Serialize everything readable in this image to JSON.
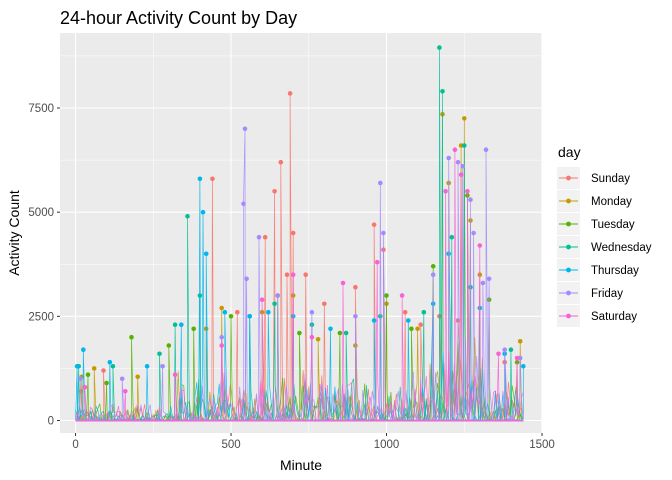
{
  "chart_data": {
    "type": "line",
    "title": "24-hour Activity Count by Day",
    "xlabel": "Minute",
    "ylabel": "Activity Count",
    "xlim": [
      -50,
      1500
    ],
    "ylim": [
      -300,
      9300
    ],
    "x_ticks": [
      0,
      500,
      1000,
      1500
    ],
    "y_ticks": [
      0,
      2500,
      5000,
      7500
    ],
    "x_tick_labels": [
      "0",
      "500",
      "1000",
      "1500"
    ],
    "y_tick_labels": [
      "0",
      "2500",
      "5000",
      "7500"
    ],
    "grid": true,
    "legend": {
      "title": "day",
      "placement": "right"
    },
    "series": [
      {
        "name": "Sunday",
        "color": "#F8766D",
        "peaks": [
          [
            18,
            700
          ],
          [
            90,
            1200
          ],
          [
            440,
            5800
          ],
          [
            520,
            2600
          ],
          [
            610,
            4400
          ],
          [
            640,
            5500
          ],
          [
            660,
            6200
          ],
          [
            680,
            3500
          ],
          [
            690,
            7850
          ],
          [
            700,
            4500
          ],
          [
            740,
            3500
          ],
          [
            800,
            2800
          ],
          [
            900,
            3200
          ],
          [
            960,
            4700
          ],
          [
            990,
            4100
          ],
          [
            1060,
            2600
          ],
          [
            1110,
            2300
          ],
          [
            1170,
            2500
          ],
          [
            1230,
            2400
          ],
          [
            1380,
            1400
          ]
        ]
      },
      {
        "name": "Monday",
        "color": "#C49A00",
        "peaks": [
          [
            20,
            1050
          ],
          [
            60,
            1250
          ],
          [
            200,
            1050
          ],
          [
            420,
            2200
          ],
          [
            470,
            2700
          ],
          [
            600,
            2600
          ],
          [
            700,
            3000
          ],
          [
            780,
            1950
          ],
          [
            900,
            1800
          ],
          [
            1000,
            2800
          ],
          [
            1100,
            2200
          ],
          [
            1180,
            7350
          ],
          [
            1200,
            5700
          ],
          [
            1240,
            6600
          ],
          [
            1250,
            7250
          ],
          [
            1270,
            4800
          ],
          [
            1300,
            3500
          ],
          [
            1430,
            1900
          ]
        ]
      },
      {
        "name": "Tuesday",
        "color": "#53B400",
        "peaks": [
          [
            40,
            1100
          ],
          [
            100,
            900
          ],
          [
            180,
            2000
          ],
          [
            300,
            1800
          ],
          [
            380,
            2200
          ],
          [
            500,
            2500
          ],
          [
            650,
            3000
          ],
          [
            720,
            2100
          ],
          [
            850,
            2100
          ],
          [
            1000,
            3000
          ],
          [
            1080,
            2200
          ],
          [
            1150,
            3700
          ],
          [
            1260,
            5400
          ],
          [
            1330,
            2900
          ],
          [
            1420,
            1400
          ]
        ]
      },
      {
        "name": "Wednesday",
        "color": "#00C094",
        "peaks": [
          [
            10,
            1300
          ],
          [
            120,
            1300
          ],
          [
            270,
            1600
          ],
          [
            320,
            2300
          ],
          [
            360,
            4900
          ],
          [
            400,
            3000
          ],
          [
            560,
            2500
          ],
          [
            640,
            2800
          ],
          [
            760,
            2300
          ],
          [
            870,
            2100
          ],
          [
            980,
            2500
          ],
          [
            1120,
            2600
          ],
          [
            1170,
            8950
          ],
          [
            1180,
            7900
          ],
          [
            1210,
            4400
          ],
          [
            1250,
            6600
          ],
          [
            1270,
            3200
          ],
          [
            1400,
            1700
          ]
        ]
      },
      {
        "name": "Thursday",
        "color": "#00B6EB",
        "peaks": [
          [
            5,
            1300
          ],
          [
            25,
            1700
          ],
          [
            110,
            1400
          ],
          [
            230,
            1300
          ],
          [
            340,
            2300
          ],
          [
            400,
            5800
          ],
          [
            410,
            5000
          ],
          [
            420,
            4000
          ],
          [
            480,
            2600
          ],
          [
            560,
            2500
          ],
          [
            620,
            2600
          ],
          [
            700,
            2500
          ],
          [
            820,
            2200
          ],
          [
            960,
            2400
          ],
          [
            1070,
            2400
          ],
          [
            1150,
            2800
          ],
          [
            1200,
            4000
          ],
          [
            1300,
            2700
          ],
          [
            1380,
            1600
          ],
          [
            1440,
            1300
          ]
        ]
      },
      {
        "name": "Friday",
        "color": "#A58AFF",
        "peaks": [
          [
            15,
            1000
          ],
          [
            150,
            1000
          ],
          [
            280,
            1300
          ],
          [
            470,
            2000
          ],
          [
            540,
            5200
          ],
          [
            545,
            7000
          ],
          [
            550,
            3400
          ],
          [
            590,
            4400
          ],
          [
            650,
            3000
          ],
          [
            760,
            2600
          ],
          [
            900,
            2500
          ],
          [
            980,
            5700
          ],
          [
            990,
            4500
          ],
          [
            1150,
            3500
          ],
          [
            1200,
            6300
          ],
          [
            1230,
            6200
          ],
          [
            1245,
            6100
          ],
          [
            1270,
            5300
          ],
          [
            1280,
            4500
          ],
          [
            1310,
            3300
          ],
          [
            1320,
            6500
          ],
          [
            1330,
            3400
          ],
          [
            1380,
            1700
          ],
          [
            1430,
            1500
          ]
        ]
      },
      {
        "name": "Saturday",
        "color": "#FB61D7",
        "peaks": [
          [
            30,
            800
          ],
          [
            160,
            700
          ],
          [
            320,
            1100
          ],
          [
            470,
            1800
          ],
          [
            600,
            2900
          ],
          [
            700,
            3500
          ],
          [
            760,
            2000
          ],
          [
            860,
            3300
          ],
          [
            970,
            3800
          ],
          [
            1050,
            3000
          ],
          [
            1190,
            5500
          ],
          [
            1220,
            6500
          ],
          [
            1240,
            5900
          ],
          [
            1260,
            5500
          ],
          [
            1300,
            4200
          ],
          [
            1360,
            1600
          ],
          [
            1420,
            1500
          ]
        ]
      }
    ]
  }
}
